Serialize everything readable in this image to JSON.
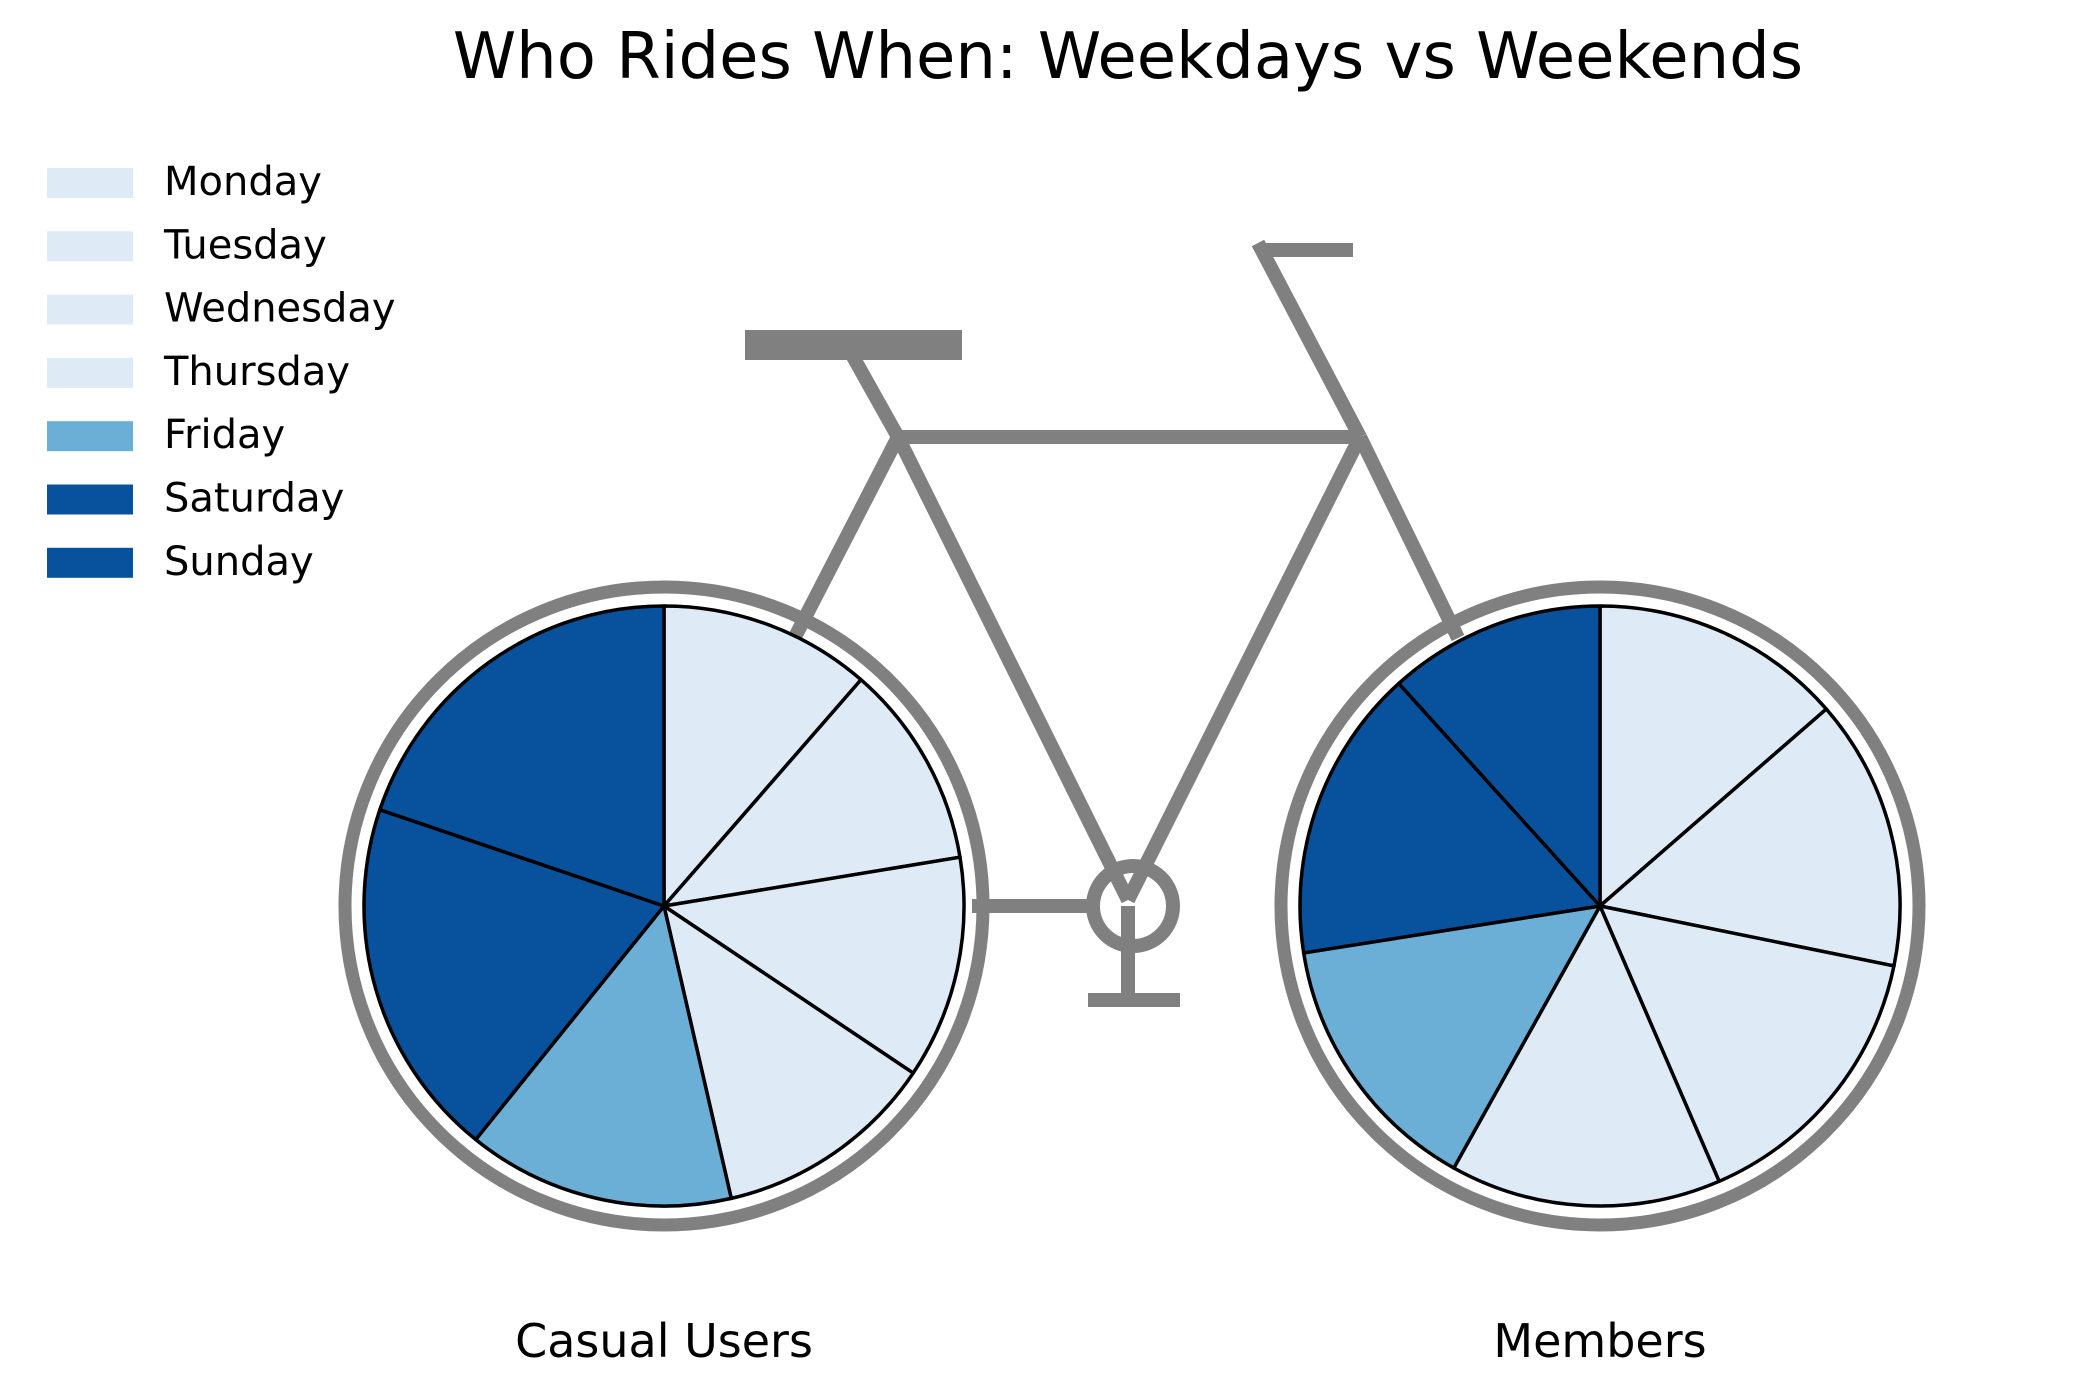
{
  "chart_data": {
    "type": "pie",
    "title": "Who Rides When: Weekdays vs Weekends",
    "categories": [
      "Monday",
      "Tuesday",
      "Wednesday",
      "Thursday",
      "Friday",
      "Saturday",
      "Sunday"
    ],
    "colors": [
      "#deebf7",
      "#deebf7",
      "#deebf7",
      "#deebf7",
      "#6baed6",
      "#08519c",
      "#08519c"
    ],
    "legend_position": "top-left",
    "series": [
      {
        "name": "Casual Users",
        "values": [
          11.4,
          11.0,
          12.0,
          12.0,
          14.4,
          19.4,
          19.8
        ]
      },
      {
        "name": "Members",
        "values": [
          13.6,
          14.6,
          15.3,
          14.6,
          14.4,
          15.8,
          11.7
        ]
      }
    ]
  },
  "decoration": {
    "frame_color": "#808080",
    "edge_color": "#000000"
  }
}
